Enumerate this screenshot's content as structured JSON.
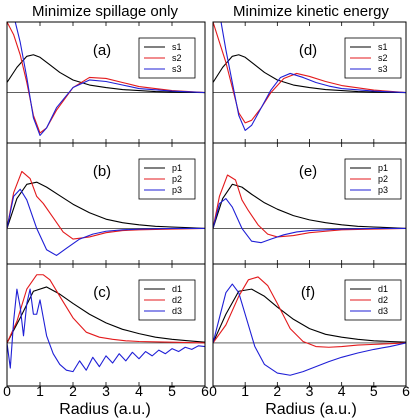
{
  "figure": {
    "column_titles": [
      "Minimize spillage only",
      "Minimize kinetic energy"
    ],
    "xlabel": "Radius (a.u.)",
    "x_ticks": [
      "0",
      "1",
      "2",
      "3",
      "4",
      "5",
      "6"
    ],
    "colors": {
      "series1": "#000000",
      "series2": "#e31a1c",
      "series3": "#1f1fd6"
    }
  },
  "chart_data": [
    {
      "type": "line",
      "panel": "(a)",
      "column": 0,
      "row": 0,
      "xlim": [
        0,
        6
      ],
      "ylim": [
        -1.0,
        1.4
      ],
      "series": [
        {
          "name": "s1",
          "x": [
            0,
            0.3,
            0.6,
            0.8,
            1.0,
            1.3,
            1.6,
            2.0,
            2.5,
            3.0,
            3.5,
            4.0,
            4.5,
            5.0,
            5.5,
            6.0
          ],
          "values": [
            0.2,
            0.5,
            0.72,
            0.75,
            0.7,
            0.55,
            0.4,
            0.25,
            0.15,
            0.1,
            0.06,
            0.04,
            0.02,
            0.01,
            0.005,
            0.0
          ]
        },
        {
          "name": "s2",
          "x": [
            0,
            0.2,
            0.4,
            0.6,
            0.8,
            1.0,
            1.2,
            1.5,
            2.0,
            2.5,
            3.0,
            3.5,
            4.0,
            5.0,
            6.0
          ],
          "values": [
            1.4,
            1.15,
            0.75,
            0.2,
            -0.45,
            -0.8,
            -0.7,
            -0.35,
            0.1,
            0.3,
            0.28,
            0.2,
            0.12,
            0.04,
            0.0
          ]
        },
        {
          "name": "s3",
          "x": [
            0.25,
            0.4,
            0.6,
            0.8,
            1.0,
            1.2,
            1.5,
            2.0,
            2.5,
            3.0,
            3.5,
            4.0,
            5.0,
            6.0
          ],
          "values": [
            1.4,
            1.0,
            0.3,
            -0.5,
            -0.85,
            -0.7,
            -0.3,
            0.1,
            0.25,
            0.22,
            0.15,
            0.08,
            0.03,
            0.0
          ]
        }
      ]
    },
    {
      "type": "line",
      "panel": "(b)",
      "column": 0,
      "row": 1,
      "xlim": [
        0,
        6
      ],
      "ylim": [
        -0.5,
        1.2
      ],
      "series": [
        {
          "name": "p1",
          "x": [
            0,
            0.3,
            0.6,
            0.9,
            1.2,
            1.6,
            2.0,
            2.5,
            3.0,
            3.5,
            4.0,
            4.5,
            5.0,
            5.5,
            6.0
          ],
          "values": [
            0,
            0.42,
            0.62,
            0.65,
            0.58,
            0.46,
            0.34,
            0.22,
            0.13,
            0.08,
            0.05,
            0.03,
            0.02,
            0.01,
            0.0
          ]
        },
        {
          "name": "p2",
          "x": [
            0,
            0.2,
            0.45,
            0.7,
            0.9,
            1.1,
            1.4,
            1.7,
            2.0,
            2.5,
            3.0,
            3.5,
            4.0,
            5.0,
            6.0
          ],
          "values": [
            0,
            0.5,
            0.8,
            0.7,
            0.45,
            0.35,
            0.15,
            -0.05,
            -0.15,
            -0.12,
            -0.06,
            -0.03,
            -0.02,
            -0.01,
            0.0
          ]
        },
        {
          "name": "p3",
          "x": [
            0,
            0.2,
            0.4,
            0.6,
            0.9,
            1.2,
            1.5,
            1.8,
            2.2,
            2.6,
            3.0,
            3.5,
            4.0,
            5.0,
            6.0
          ],
          "values": [
            0,
            0.45,
            0.55,
            0.4,
            0.0,
            -0.3,
            -0.38,
            -0.28,
            -0.15,
            -0.08,
            -0.04,
            -0.02,
            -0.01,
            0.0,
            0.0
          ]
        }
      ]
    },
    {
      "type": "line",
      "panel": "(c)",
      "column": 0,
      "row": 2,
      "xlim": [
        0,
        6
      ],
      "ylim": [
        -0.6,
        1.1
      ],
      "series": [
        {
          "name": "d1",
          "x": [
            0,
            0.4,
            0.8,
            1.2,
            1.6,
            2.0,
            2.5,
            3.0,
            3.5,
            4.0,
            4.5,
            5.0,
            5.5,
            6.0
          ],
          "values": [
            0,
            0.35,
            0.72,
            0.78,
            0.68,
            0.55,
            0.4,
            0.28,
            0.19,
            0.13,
            0.08,
            0.05,
            0.03,
            0.01
          ]
        },
        {
          "name": "d2",
          "x": [
            0,
            0.3,
            0.6,
            0.9,
            1.1,
            1.3,
            1.6,
            2.0,
            2.4,
            2.8,
            3.2,
            3.6,
            4.0,
            5.0,
            6.0
          ],
          "values": [
            0,
            0.3,
            0.75,
            0.95,
            0.95,
            0.88,
            0.65,
            0.35,
            0.15,
            0.08,
            0.05,
            0.03,
            0.02,
            0.01,
            0.0
          ]
        },
        {
          "name": "d3",
          "x": [
            0,
            0.1,
            0.2,
            0.3,
            0.4,
            0.5,
            0.6,
            0.7,
            0.8,
            0.9,
            1.0,
            1.1,
            1.2,
            1.4,
            1.6,
            1.8,
            2.0,
            2.2,
            2.4,
            2.6,
            2.8,
            3.0,
            3.2,
            3.4,
            3.6,
            3.8,
            4.0,
            4.2,
            4.4,
            4.6,
            4.8,
            5.0,
            5.2,
            5.4,
            5.6,
            5.8,
            6.0
          ],
          "values": [
            0,
            -0.35,
            0.3,
            0.75,
            0.5,
            0.1,
            0.55,
            0.75,
            0.4,
            0.4,
            0.6,
            0.35,
            0.1,
            -0.15,
            -0.3,
            -0.38,
            -0.4,
            -0.25,
            -0.38,
            -0.2,
            -0.33,
            -0.18,
            -0.28,
            -0.15,
            -0.25,
            -0.13,
            -0.22,
            -0.12,
            -0.18,
            -0.1,
            -0.15,
            -0.08,
            -0.12,
            -0.06,
            -0.09,
            -0.04,
            -0.05
          ]
        }
      ]
    },
    {
      "type": "line",
      "panel": "(d)",
      "column": 1,
      "row": 0,
      "xlim": [
        0,
        6
      ],
      "ylim": [
        -1.0,
        1.4
      ],
      "series": [
        {
          "name": "s1",
          "x": [
            0,
            0.3,
            0.6,
            0.8,
            1.0,
            1.3,
            1.6,
            2.0,
            2.5,
            3.0,
            3.5,
            4.0,
            4.5,
            5.0,
            5.5,
            6.0
          ],
          "values": [
            0.2,
            0.5,
            0.72,
            0.75,
            0.7,
            0.55,
            0.4,
            0.25,
            0.15,
            0.1,
            0.06,
            0.04,
            0.02,
            0.01,
            0.005,
            0.0
          ]
        },
        {
          "name": "s2",
          "x": [
            0,
            0.2,
            0.4,
            0.6,
            0.8,
            1.0,
            1.2,
            1.5,
            1.8,
            2.2,
            2.6,
            3.0,
            3.5,
            4.0,
            5.0,
            6.0
          ],
          "values": [
            1.4,
            1.0,
            0.6,
            0.1,
            -0.4,
            -0.6,
            -0.55,
            -0.3,
            0.0,
            0.28,
            0.38,
            0.32,
            0.22,
            0.14,
            0.05,
            0.0
          ]
        },
        {
          "name": "s3",
          "x": [
            0.25,
            0.4,
            0.6,
            0.8,
            1.0,
            1.2,
            1.5,
            1.8,
            2.1,
            2.4,
            2.8,
            3.2,
            3.6,
            4.0,
            5.0,
            6.0
          ],
          "values": [
            1.4,
            0.85,
            0.2,
            -0.45,
            -0.75,
            -0.65,
            -0.3,
            0.05,
            0.3,
            0.38,
            0.3,
            0.2,
            0.13,
            0.08,
            0.03,
            0.0
          ]
        }
      ]
    },
    {
      "type": "line",
      "panel": "(e)",
      "column": 1,
      "row": 1,
      "xlim": [
        0,
        6
      ],
      "ylim": [
        -0.5,
        1.2
      ],
      "series": [
        {
          "name": "p1",
          "x": [
            0,
            0.3,
            0.6,
            0.9,
            1.2,
            1.6,
            2.0,
            2.5,
            3.0,
            3.5,
            4.0,
            4.5,
            5.0,
            5.5,
            6.0
          ],
          "values": [
            0,
            0.42,
            0.62,
            0.58,
            0.48,
            0.36,
            0.27,
            0.18,
            0.12,
            0.08,
            0.05,
            0.03,
            0.02,
            0.01,
            0.0
          ]
        },
        {
          "name": "p2",
          "x": [
            0,
            0.2,
            0.45,
            0.7,
            0.9,
            1.1,
            1.4,
            1.7,
            2.0,
            2.5,
            3.0,
            3.5,
            4.0,
            5.0,
            6.0
          ],
          "values": [
            0,
            0.45,
            0.75,
            0.68,
            0.4,
            0.25,
            0.05,
            -0.08,
            -0.12,
            -0.1,
            -0.06,
            -0.04,
            -0.02,
            -0.01,
            0.0
          ]
        },
        {
          "name": "p3",
          "x": [
            0,
            0.2,
            0.4,
            0.6,
            0.9,
            1.2,
            1.5,
            1.8,
            2.2,
            2.6,
            3.0,
            3.5,
            4.0,
            5.0,
            6.0
          ],
          "values": [
            0,
            0.35,
            0.42,
            0.3,
            0.0,
            -0.18,
            -0.2,
            -0.15,
            -0.09,
            -0.05,
            -0.03,
            -0.02,
            -0.01,
            0.0,
            0.0
          ]
        }
      ]
    },
    {
      "type": "line",
      "panel": "(f)",
      "column": 1,
      "row": 2,
      "xlim": [
        0,
        6
      ],
      "ylim": [
        -0.6,
        1.1
      ],
      "series": [
        {
          "name": "d1",
          "x": [
            0,
            0.4,
            0.8,
            1.2,
            1.6,
            2.0,
            2.5,
            3.0,
            3.5,
            4.0,
            4.5,
            5.0,
            5.5,
            6.0
          ],
          "values": [
            0,
            0.4,
            0.72,
            0.75,
            0.65,
            0.5,
            0.33,
            0.2,
            0.12,
            0.08,
            0.05,
            0.03,
            0.02,
            0.01
          ]
        },
        {
          "name": "d2",
          "x": [
            0,
            0.4,
            0.8,
            1.1,
            1.4,
            1.7,
            2.0,
            2.4,
            2.8,
            3.2,
            3.6,
            4.0,
            4.5,
            5.0,
            5.5,
            6.0
          ],
          "values": [
            0,
            0.25,
            0.65,
            0.88,
            0.92,
            0.8,
            0.55,
            0.2,
            0.02,
            -0.05,
            -0.06,
            -0.05,
            -0.03,
            -0.02,
            -0.01,
            0.0
          ]
        },
        {
          "name": "d3",
          "x": [
            0,
            0.2,
            0.4,
            0.6,
            0.8,
            1.0,
            1.3,
            1.6,
            2.0,
            2.4,
            2.8,
            3.2,
            3.6,
            4.0,
            4.5,
            5.0,
            5.5,
            6.0
          ],
          "values": [
            0,
            0.35,
            0.7,
            0.82,
            0.7,
            0.4,
            -0.05,
            -0.3,
            -0.42,
            -0.45,
            -0.4,
            -0.33,
            -0.26,
            -0.2,
            -0.14,
            -0.09,
            -0.05,
            0.0
          ]
        }
      ]
    }
  ]
}
